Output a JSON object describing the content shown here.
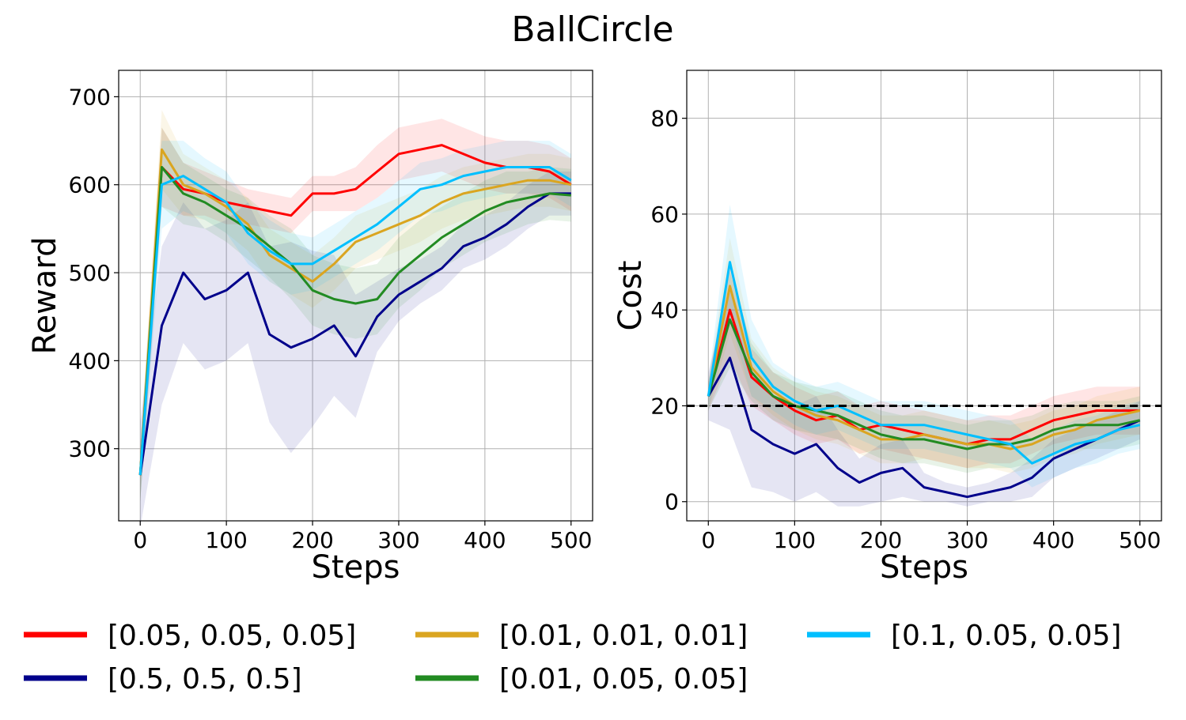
{
  "figure": {
    "title": "BallCircle"
  },
  "chart_data": [
    {
      "type": "line",
      "xlabel": "Steps",
      "ylabel": "Reward",
      "xlim": [
        -25,
        525
      ],
      "ylim": [
        218,
        730
      ],
      "xticks": [
        0,
        100,
        200,
        300,
        400,
        500
      ],
      "yticks": [
        300,
        400,
        500,
        600,
        700
      ],
      "grid": true,
      "x": [
        0,
        25,
        50,
        75,
        100,
        125,
        150,
        175,
        200,
        225,
        250,
        275,
        300,
        325,
        350,
        375,
        400,
        425,
        450,
        475,
        500
      ],
      "series": [
        {
          "name": "[0.05, 0.05, 0.05]",
          "color": "#ff0000",
          "values": [
            270,
            620,
            595,
            590,
            580,
            575,
            570,
            565,
            590,
            590,
            595,
            615,
            635,
            640,
            645,
            635,
            625,
            620,
            620,
            615,
            600
          ],
          "band": [
            30,
            45,
            30,
            25,
            25,
            20,
            20,
            20,
            20,
            20,
            25,
            30,
            30,
            30,
            30,
            30,
            30,
            30,
            30,
            30,
            30
          ]
        },
        {
          "name": "[0.5, 0.5, 0.5]",
          "color": "#00008b",
          "values": [
            270,
            440,
            500,
            470,
            480,
            500,
            430,
            415,
            425,
            440,
            405,
            450,
            475,
            490,
            505,
            530,
            540,
            555,
            575,
            590,
            590
          ],
          "band": [
            60,
            90,
            80,
            80,
            80,
            80,
            100,
            120,
            100,
            80,
            70,
            40,
            30,
            25,
            25,
            25,
            25,
            25,
            25,
            25,
            25
          ]
        },
        {
          "name": "[0.01, 0.01, 0.01]",
          "color": "#daa520",
          "values": [
            270,
            640,
            600,
            590,
            575,
            555,
            520,
            505,
            490,
            510,
            535,
            545,
            555,
            565,
            580,
            590,
            595,
            600,
            605,
            605,
            600
          ],
          "band": [
            30,
            45,
            35,
            30,
            30,
            30,
            30,
            30,
            30,
            30,
            30,
            30,
            30,
            30,
            30,
            30,
            30,
            30,
            30,
            30,
            30
          ]
        },
        {
          "name": "[0.01, 0.05, 0.05]",
          "color": "#228b22",
          "values": [
            270,
            620,
            590,
            580,
            565,
            550,
            530,
            510,
            480,
            470,
            465,
            470,
            500,
            520,
            540,
            555,
            570,
            580,
            585,
            590,
            588
          ],
          "band": [
            30,
            45,
            35,
            30,
            30,
            35,
            35,
            40,
            40,
            40,
            40,
            40,
            40,
            40,
            35,
            35,
            35,
            35,
            30,
            30,
            30
          ]
        },
        {
          "name": "[0.1, 0.05, 0.05]",
          "color": "#00bfff",
          "values": [
            270,
            600,
            610,
            595,
            580,
            545,
            525,
            510,
            510,
            525,
            540,
            555,
            575,
            595,
            600,
            610,
            615,
            620,
            620,
            620,
            605
          ],
          "band": [
            30,
            50,
            40,
            35,
            35,
            35,
            35,
            35,
            30,
            30,
            30,
            30,
            30,
            30,
            30,
            30,
            30,
            30,
            30,
            30,
            30
          ]
        }
      ],
      "legend": "bottom"
    },
    {
      "type": "line",
      "xlabel": "Steps",
      "ylabel": "Cost",
      "xlim": [
        -25,
        525
      ],
      "ylim": [
        -4,
        90
      ],
      "xticks": [
        0,
        100,
        200,
        300,
        400,
        500
      ],
      "yticks": [
        0,
        20,
        40,
        60,
        80
      ],
      "grid": true,
      "threshold": 20,
      "x": [
        0,
        25,
        50,
        75,
        100,
        125,
        150,
        175,
        200,
        225,
        250,
        275,
        300,
        325,
        350,
        375,
        400,
        425,
        450,
        475,
        500
      ],
      "series": [
        {
          "name": "[0.05, 0.05, 0.05]",
          "color": "#ff0000",
          "values": [
            22,
            40,
            26,
            22,
            19,
            17,
            18,
            15,
            16,
            15,
            14,
            13,
            12,
            13,
            13,
            15,
            17,
            18,
            19,
            19,
            19
          ],
          "band": [
            3,
            10,
            6,
            5,
            5,
            5,
            5,
            5,
            5,
            5,
            5,
            5,
            5,
            5,
            5,
            5,
            5,
            5,
            5,
            5,
            5
          ]
        },
        {
          "name": "[0.5, 0.5, 0.5]",
          "color": "#00008b",
          "values": [
            22,
            30,
            15,
            12,
            10,
            12,
            7,
            4,
            6,
            7,
            3,
            2,
            1,
            2,
            3,
            5,
            9,
            11,
            13,
            15,
            17
          ],
          "band": [
            5,
            15,
            12,
            10,
            10,
            10,
            8,
            5,
            6,
            6,
            3,
            2,
            2,
            2,
            3,
            4,
            4,
            4,
            4,
            4,
            4
          ]
        },
        {
          "name": "[0.01, 0.01, 0.01]",
          "color": "#daa520",
          "values": [
            22,
            45,
            28,
            23,
            20,
            18,
            17,
            15,
            13,
            13,
            14,
            13,
            12,
            12,
            11,
            12,
            14,
            15,
            17,
            18,
            19
          ],
          "band": [
            3,
            10,
            6,
            5,
            5,
            5,
            5,
            5,
            5,
            5,
            5,
            5,
            5,
            5,
            5,
            5,
            5,
            5,
            5,
            5,
            5
          ]
        },
        {
          "name": "[0.01, 0.05, 0.05]",
          "color": "#228b22",
          "values": [
            22,
            38,
            27,
            22,
            20,
            19,
            18,
            16,
            14,
            13,
            13,
            12,
            11,
            12,
            12,
            13,
            15,
            16,
            16,
            16,
            17
          ],
          "band": [
            3,
            10,
            6,
            5,
            5,
            5,
            5,
            5,
            5,
            5,
            5,
            5,
            5,
            5,
            5,
            5,
            5,
            5,
            5,
            5,
            5
          ]
        },
        {
          "name": "[0.1, 0.05, 0.05]",
          "color": "#00bfff",
          "values": [
            22,
            50,
            30,
            24,
            21,
            19,
            20,
            18,
            16,
            16,
            16,
            15,
            14,
            13,
            12,
            8,
            10,
            12,
            13,
            15,
            16
          ],
          "band": [
            3,
            12,
            8,
            5,
            5,
            5,
            5,
            5,
            5,
            5,
            5,
            5,
            5,
            5,
            5,
            5,
            5,
            5,
            5,
            5,
            5
          ]
        }
      ],
      "legend": "bottom"
    }
  ],
  "legend": [
    {
      "label": "[0.05, 0.05, 0.05]",
      "color": "#ff0000"
    },
    {
      "label": "[0.01, 0.01, 0.01]",
      "color": "#daa520"
    },
    {
      "label": "[0.1, 0.05, 0.05]",
      "color": "#00bfff"
    },
    {
      "label": "[0.5, 0.5, 0.5]",
      "color": "#00008b"
    },
    {
      "label": "[0.01, 0.05, 0.05]",
      "color": "#228b22"
    }
  ]
}
